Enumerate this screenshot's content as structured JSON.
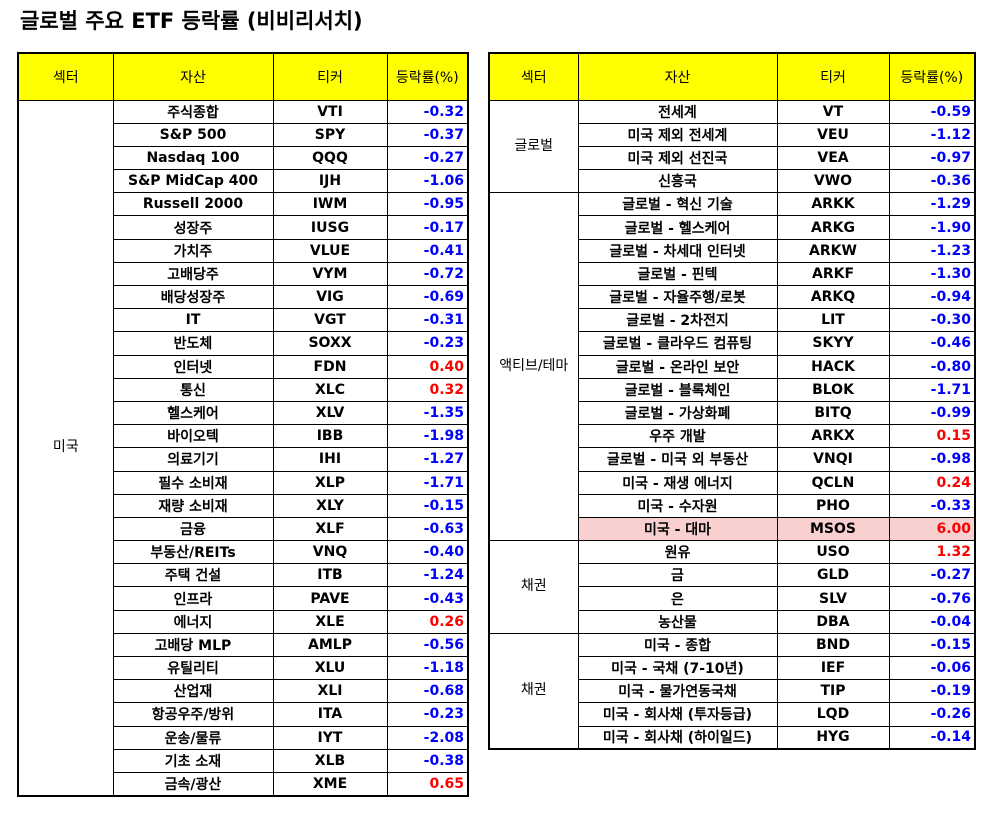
{
  "title": "글로벌 주요 ETF 등락률 (비비리서치)",
  "headers": {
    "sector": "섹터",
    "asset": "자산",
    "ticker": "티커",
    "change": "등락률(%)"
  },
  "colors": {
    "header_bg": "#ffff00",
    "negative": "#0000ff",
    "positive": "#ff0000",
    "highlight": "#f8d0d0"
  },
  "left_table": [
    {
      "sector": "미국",
      "rows": [
        {
          "asset": "주식종합",
          "ticker": "VTI",
          "change": "-0.32"
        },
        {
          "asset": "S&P 500",
          "ticker": "SPY",
          "change": "-0.37"
        },
        {
          "asset": "Nasdaq 100",
          "ticker": "QQQ",
          "change": "-0.27"
        },
        {
          "asset": "S&P MidCap 400",
          "ticker": "IJH",
          "change": "-1.06"
        },
        {
          "asset": "Russell 2000",
          "ticker": "IWM",
          "change": "-0.95"
        },
        {
          "asset": "성장주",
          "ticker": "IUSG",
          "change": "-0.17"
        },
        {
          "asset": "가치주",
          "ticker": "VLUE",
          "change": "-0.41"
        },
        {
          "asset": "고배당주",
          "ticker": "VYM",
          "change": "-0.72"
        },
        {
          "asset": "배당성장주",
          "ticker": "VIG",
          "change": "-0.69"
        },
        {
          "asset": "IT",
          "ticker": "VGT",
          "change": "-0.31"
        },
        {
          "asset": "반도체",
          "ticker": "SOXX",
          "change": "-0.23"
        },
        {
          "asset": "인터넷",
          "ticker": "FDN",
          "change": "0.40"
        },
        {
          "asset": "통신",
          "ticker": "XLC",
          "change": "0.32"
        },
        {
          "asset": "헬스케어",
          "ticker": "XLV",
          "change": "-1.35"
        },
        {
          "asset": "바이오텍",
          "ticker": "IBB",
          "change": "-1.98"
        },
        {
          "asset": "의료기기",
          "ticker": "IHI",
          "change": "-1.27"
        },
        {
          "asset": "필수 소비재",
          "ticker": "XLP",
          "change": "-1.71"
        },
        {
          "asset": "재량 소비재",
          "ticker": "XLY",
          "change": "-0.15"
        },
        {
          "asset": "금융",
          "ticker": "XLF",
          "change": "-0.63"
        },
        {
          "asset": "부동산/REITs",
          "ticker": "VNQ",
          "change": "-0.40"
        },
        {
          "asset": "주택 건설",
          "ticker": "ITB",
          "change": "-1.24"
        },
        {
          "asset": "인프라",
          "ticker": "PAVE",
          "change": "-0.43"
        },
        {
          "asset": "에너지",
          "ticker": "XLE",
          "change": "0.26"
        },
        {
          "asset": "고배당 MLP",
          "ticker": "AMLP",
          "change": "-0.56"
        },
        {
          "asset": "유틸리티",
          "ticker": "XLU",
          "change": "-1.18"
        },
        {
          "asset": "산업재",
          "ticker": "XLI",
          "change": "-0.68"
        },
        {
          "asset": "항공우주/방위",
          "ticker": "ITA",
          "change": "-0.23"
        },
        {
          "asset": "운송/물류",
          "ticker": "IYT",
          "change": "-2.08"
        },
        {
          "asset": "기초 소재",
          "ticker": "XLB",
          "change": "-0.38"
        },
        {
          "asset": "금속/광산",
          "ticker": "XME",
          "change": "0.65"
        }
      ]
    }
  ],
  "right_table": [
    {
      "sector": "글로벌",
      "rows": [
        {
          "asset": "전세계",
          "ticker": "VT",
          "change": "-0.59"
        },
        {
          "asset": "미국 제외 전세계",
          "ticker": "VEU",
          "change": "-1.12"
        },
        {
          "asset": "미국 제외 선진국",
          "ticker": "VEA",
          "change": "-0.97"
        },
        {
          "asset": "신흥국",
          "ticker": "VWO",
          "change": "-0.36"
        }
      ]
    },
    {
      "sector": "액티브/테마",
      "rows": [
        {
          "asset": "글로벌 - 혁신 기술",
          "ticker": "ARKK",
          "change": "-1.29"
        },
        {
          "asset": "글로벌 - 헬스케어",
          "ticker": "ARKG",
          "change": "-1.90"
        },
        {
          "asset": "글로벌 - 차세대 인터넷",
          "ticker": "ARKW",
          "change": "-1.23"
        },
        {
          "asset": "글로벌 - 핀텍",
          "ticker": "ARKF",
          "change": "-1.30"
        },
        {
          "asset": "글로벌 - 자율주행/로봇",
          "ticker": "ARKQ",
          "change": "-0.94"
        },
        {
          "asset": "글로벌 - 2차전지",
          "ticker": "LIT",
          "change": "-0.30"
        },
        {
          "asset": "글로벌 - 클라우드 컴퓨팅",
          "ticker": "SKYY",
          "change": "-0.46"
        },
        {
          "asset": "글로벌 - 온라인 보안",
          "ticker": "HACK",
          "change": "-0.80"
        },
        {
          "asset": "글로벌 - 블록체인",
          "ticker": "BLOK",
          "change": "-1.71"
        },
        {
          "asset": "글로벌 - 가상화폐",
          "ticker": "BITQ",
          "change": "-0.99"
        },
        {
          "asset": "우주 개발",
          "ticker": "ARKX",
          "change": "0.15"
        },
        {
          "asset": "글로벌 - 미국 외 부동산",
          "ticker": "VNQI",
          "change": "-0.98"
        },
        {
          "asset": "미국 - 재생 에너지",
          "ticker": "QCLN",
          "change": "0.24"
        },
        {
          "asset": "미국 - 수자원",
          "ticker": "PHO",
          "change": "-0.33"
        },
        {
          "asset": "미국 - 대마",
          "ticker": "MSOS",
          "change": "6.00",
          "highlight": true
        }
      ]
    },
    {
      "sector": "채권",
      "rows": [
        {
          "asset": "원유",
          "ticker": "USO",
          "change": "1.32"
        },
        {
          "asset": "금",
          "ticker": "GLD",
          "change": "-0.27"
        },
        {
          "asset": "은",
          "ticker": "SLV",
          "change": "-0.76"
        },
        {
          "asset": "농산물",
          "ticker": "DBA",
          "change": "-0.04"
        }
      ]
    },
    {
      "sector": "채권",
      "rows": [
        {
          "asset": "미국 - 종합",
          "ticker": "BND",
          "change": "-0.15"
        },
        {
          "asset": "미국 - 국채 (7-10년)",
          "ticker": "IEF",
          "change": "-0.06"
        },
        {
          "asset": "미국 - 물가연동국채",
          "ticker": "TIP",
          "change": "-0.19"
        },
        {
          "asset": "미국 - 회사채 (투자등급)",
          "ticker": "LQD",
          "change": "-0.26"
        },
        {
          "asset": "미국 - 회사채 (하이일드)",
          "ticker": "HYG",
          "change": "-0.14"
        }
      ]
    }
  ]
}
